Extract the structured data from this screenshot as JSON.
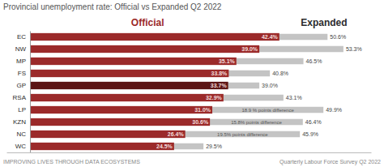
{
  "chart_data": {
    "type": "bar",
    "orientation": "horizontal",
    "title": "Provincial unemployment rate: Official vs Expanded Q2 2022",
    "categories": [
      "EC",
      "NW",
      "MP",
      "FS",
      "GP",
      "RSA",
      "LP",
      "KZN",
      "NC",
      "WC"
    ],
    "series": [
      {
        "name": "Official",
        "colors": [
          "#9b2a2a",
          "#9b2a2a",
          "#9b2a2a",
          "#9b2a2a",
          "#5c1515",
          "#9b2a2a",
          "#9b2a2a",
          "#9b2a2a",
          "#9b2a2a",
          "#9b2a2a"
        ],
        "values": [
          42.4,
          39.0,
          35.1,
          33.8,
          33.7,
          32.9,
          31.0,
          30.6,
          26.4,
          24.5
        ],
        "value_labels": [
          "42.4%",
          "39.0%",
          "35.1%",
          "33.8%",
          "33.7%",
          "32.9%",
          "31.0%",
          "30.6%",
          "26.4%",
          "24.5%"
        ]
      },
      {
        "name": "Expanded",
        "color": "#c4c4c4",
        "values": [
          50.6,
          53.3,
          46.5,
          40.8,
          39.0,
          43.1,
          49.9,
          46.4,
          45.9,
          29.5
        ],
        "value_labels": [
          "50.6%",
          "53.3%",
          "46.5%",
          "40.8%",
          "39.0%",
          "43.1%",
          "49.9%",
          "46.4%",
          "45.9%",
          "29.5%"
        ]
      }
    ],
    "annotations": [
      {
        "category": "LP",
        "text": "18.9 % points difference"
      },
      {
        "category": "KZN",
        "text": "15.8% points difference"
      },
      {
        "category": "NC",
        "text": "19.5% points difference"
      }
    ],
    "footer": [
      "IMPROVING LIVES THROUGH DATA ECOSYSTEMS",
      "Quarterly Labour Force Survey Q2 2022"
    ],
    "xlim": [
      -4,
      58
    ],
    "tick_labels": "y",
    "grid": false,
    "data_labels": true
  }
}
